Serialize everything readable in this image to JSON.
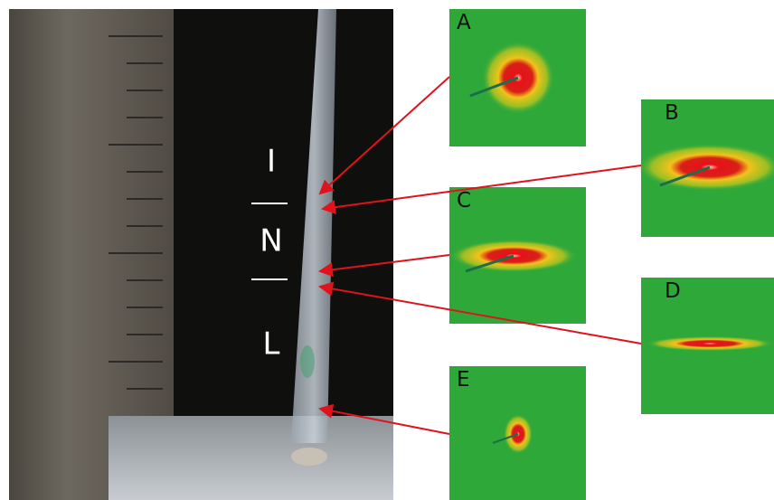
{
  "phase_labels": [
    "I",
    "N",
    "L"
  ],
  "panels": [
    {
      "label": "A"
    },
    {
      "label": "B"
    },
    {
      "label": "C"
    },
    {
      "label": "D"
    },
    {
      "label": "E"
    }
  ]
}
